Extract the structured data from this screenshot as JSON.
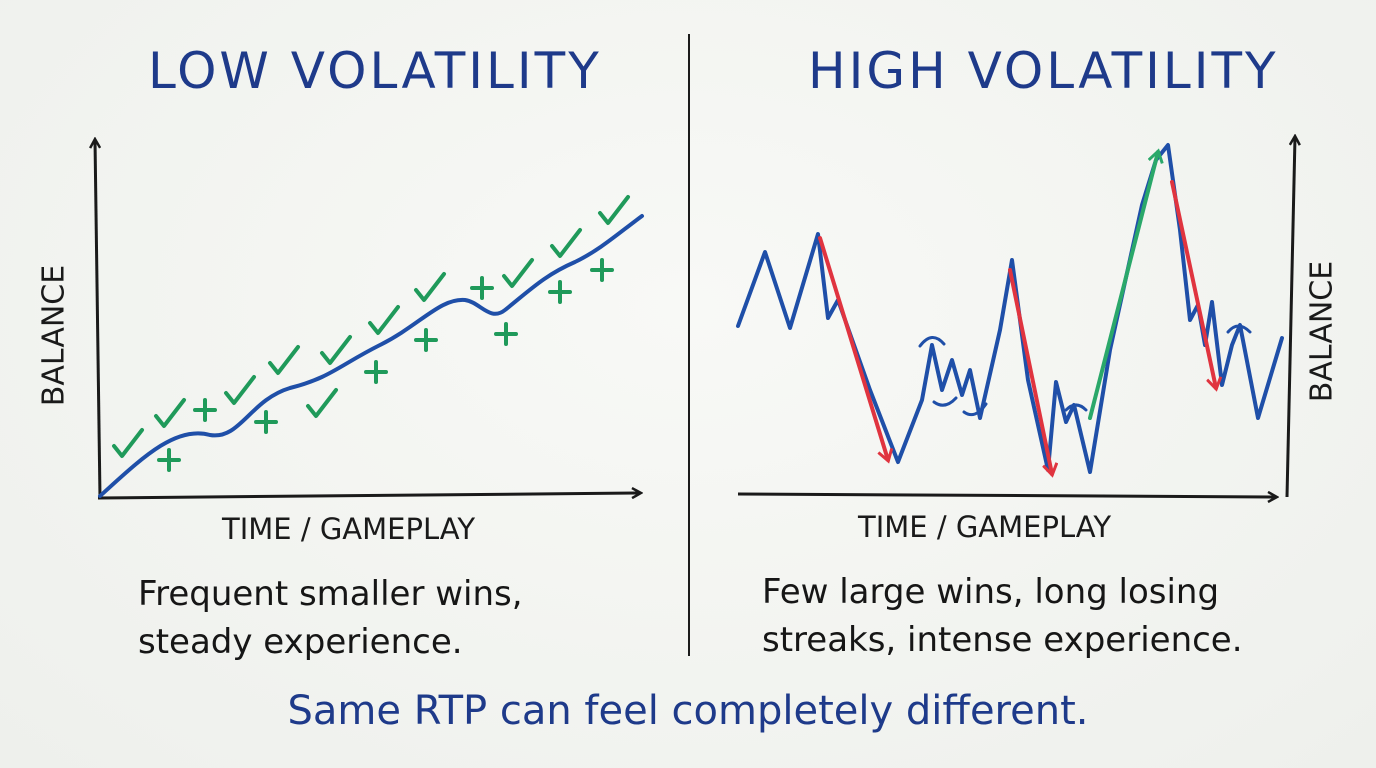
{
  "low": {
    "title": "LOW VOLATILITY",
    "y_label": "BALANCE",
    "x_label": "TIME / GAMEPLAY",
    "caption_line1": "Frequent smaller wins,",
    "caption_line2": "steady experience."
  },
  "high": {
    "title": "HIGH VOLATILITY",
    "y_label": "BALANCE",
    "x_label": "TIME / GAMEPLAY",
    "caption_line1": "Few large wins, long losing",
    "caption_line2": "streaks, intense experience."
  },
  "bottom_note": "Same RTP can feel completely different.",
  "colors": {
    "title_blue": "#1e3a8a",
    "line_blue": "#1f4fa8",
    "check_green": "#1f9a5a",
    "loss_red": "#e0343f",
    "win_green": "#2aa86a",
    "ink": "#1a1a1a"
  },
  "icons": {
    "check": "check-icon",
    "plus": "plus-icon",
    "arrow_down": "red-arrow-down",
    "arrow_up": "green-arrow-up"
  }
}
